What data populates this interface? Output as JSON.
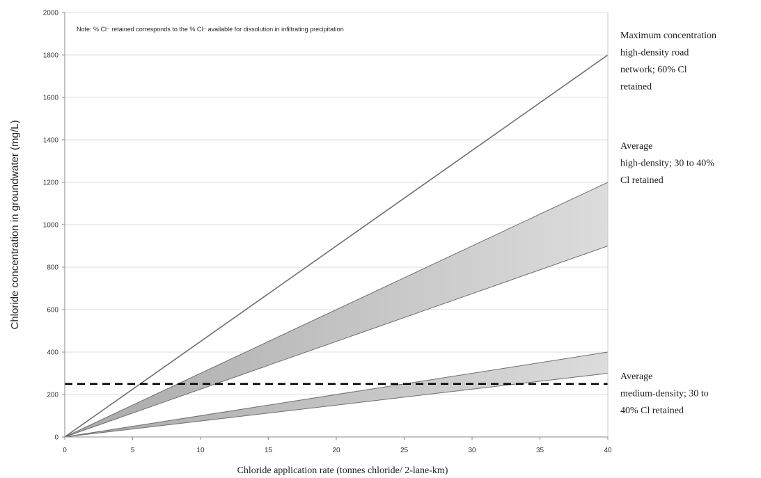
{
  "chart_data": {
    "type": "area",
    "title": "",
    "xlabel": "Chloride application rate (tonnes chloride/ 2-lane-km)",
    "ylabel": "Chloride concentration in groundwater (mg/L)",
    "xlim": [
      0,
      40
    ],
    "ylim": [
      0,
      2000
    ],
    "x_ticks": [
      0,
      5,
      10,
      15,
      20,
      25,
      30,
      35,
      40
    ],
    "y_ticks": [
      0,
      200,
      400,
      600,
      800,
      1000,
      1200,
      1400,
      1600,
      1800,
      2000
    ],
    "grid": true,
    "note": "Note:  % Cl⁻ retained corresponds to the % Cl⁻ available for dissolution in infiltrating precipitation",
    "series": [
      {
        "kind": "line",
        "x": [
          0,
          40
        ],
        "y": [
          0,
          1800
        ],
        "label": [
          "Maximum concentration",
          "high-density road",
          "network; 60% Cl",
          "retained"
        ]
      },
      {
        "kind": "band",
        "x": [
          0,
          40
        ],
        "y_low": [
          0,
          900
        ],
        "y_high": [
          0,
          1200
        ],
        "label": [
          "Average",
          "high-density; 30 to 40%",
          "Cl retained"
        ]
      },
      {
        "kind": "band",
        "x": [
          0,
          40
        ],
        "y_low": [
          0,
          300
        ],
        "y_high": [
          0,
          400
        ],
        "label": [
          "Average",
          "medium-density; 30 to",
          "40% Cl retained"
        ]
      }
    ],
    "reference_line": {
      "y": 250,
      "style": "dashed"
    },
    "colors": {
      "band_fill": "#c8c8c8",
      "line": "#6e6e6e",
      "grid": "#dddddd",
      "reference": "#000000"
    }
  }
}
